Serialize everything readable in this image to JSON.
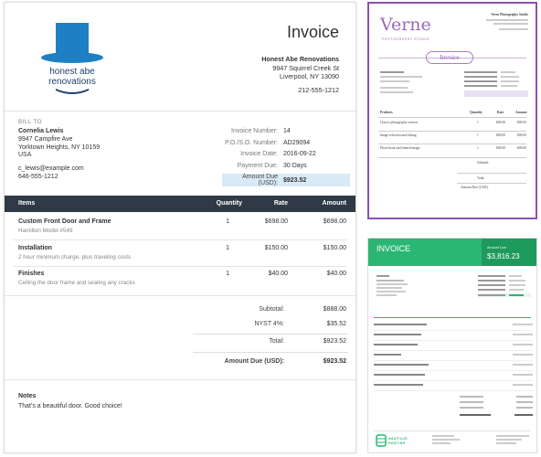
{
  "invoice": {
    "title": "Invoice",
    "logo_text_1": "honest abe",
    "logo_text_2": "renovations",
    "from": {
      "company": "Honest Abe Renovations",
      "street": "9947 Squirrel Creek St",
      "city": "Liverpool, NY 13090",
      "phone": "212-555-1212"
    },
    "bill_to_label": "BILL TO",
    "client": {
      "name": "Cornelia Lewis",
      "street": "9947 Campfire Ave",
      "city": "Yorktown Heights, NY 10159",
      "country": "USA",
      "email": "c_lewis@example.com",
      "phone": "646-555-1212"
    },
    "meta": [
      {
        "k": "Invoice Number:",
        "v": "14"
      },
      {
        "k": "P.O./S.O. Number:",
        "v": "AD29094"
      },
      {
        "k": "Invoice Date:",
        "v": "2016-09-22"
      },
      {
        "k": "Payment Due:",
        "v": "30 Days"
      }
    ],
    "amount_due_label": "Amount Due (USD):",
    "amount_due_value": "$923.52",
    "columns": {
      "items": "Items",
      "quantity": "Quantity",
      "rate": "Rate",
      "amount": "Amount"
    },
    "items": [
      {
        "name": "Custom Front Door and Frame",
        "desc": "Hamilton Model #549",
        "qty": "1",
        "rate": "$698.00",
        "amount": "$698.00"
      },
      {
        "name": "Installation",
        "desc": "2 hour minimum charge, plus traveling costs",
        "qty": "1",
        "rate": "$150.00",
        "amount": "$150.00"
      },
      {
        "name": "Finishes",
        "desc": "Ceiling the door frame and sealing any cracks",
        "qty": "1",
        "rate": "$40.00",
        "amount": "$40.00"
      }
    ],
    "totals": {
      "subtotal_label": "Subtotal:",
      "subtotal": "$888.00",
      "tax_label": "NYST 4%:",
      "tax": "$35.52",
      "total_label": "Total:",
      "total": "$923.52",
      "due_label": "Amount Due (USD):",
      "due": "$923.52"
    },
    "notes_label": "Notes",
    "notes": "That's a beautiful door. Good choice!"
  },
  "purple": {
    "brand": "Verne",
    "subtitle": "PHOTOGRAPHY STUDIO",
    "pill": "Invoice",
    "studio_name": "Verne Photography Studio",
    "cols": [
      "Products",
      "Quantity",
      "Rate",
      "Amount"
    ],
    "rows": [
      {
        "name": "Classic photography session",
        "qty": "1",
        "rate": "$00.00",
        "amount": "$00.00"
      },
      {
        "name": "Image selection and editing",
        "qty": "1",
        "rate": "$00.00",
        "amount": "$00.00"
      },
      {
        "name": "Photo book and framed image",
        "qty": "1",
        "rate": "$00.00",
        "amount": "$00.00"
      }
    ],
    "subtotal_label": "Subtotal:",
    "total_label": "Total:",
    "due_label": "Amount Due (CAD):"
  },
  "green": {
    "title": "INVOICE",
    "due_label": "Amount Due",
    "due_value": "$3,816.23",
    "footer": "NAUTILUS HOSTING"
  },
  "colors": {
    "header": "#2f3a46",
    "due_bg": "#d8eaf5",
    "logo_blue": "#1f7fc4",
    "purple": "#8d4fb3",
    "green": "#2bb673"
  }
}
